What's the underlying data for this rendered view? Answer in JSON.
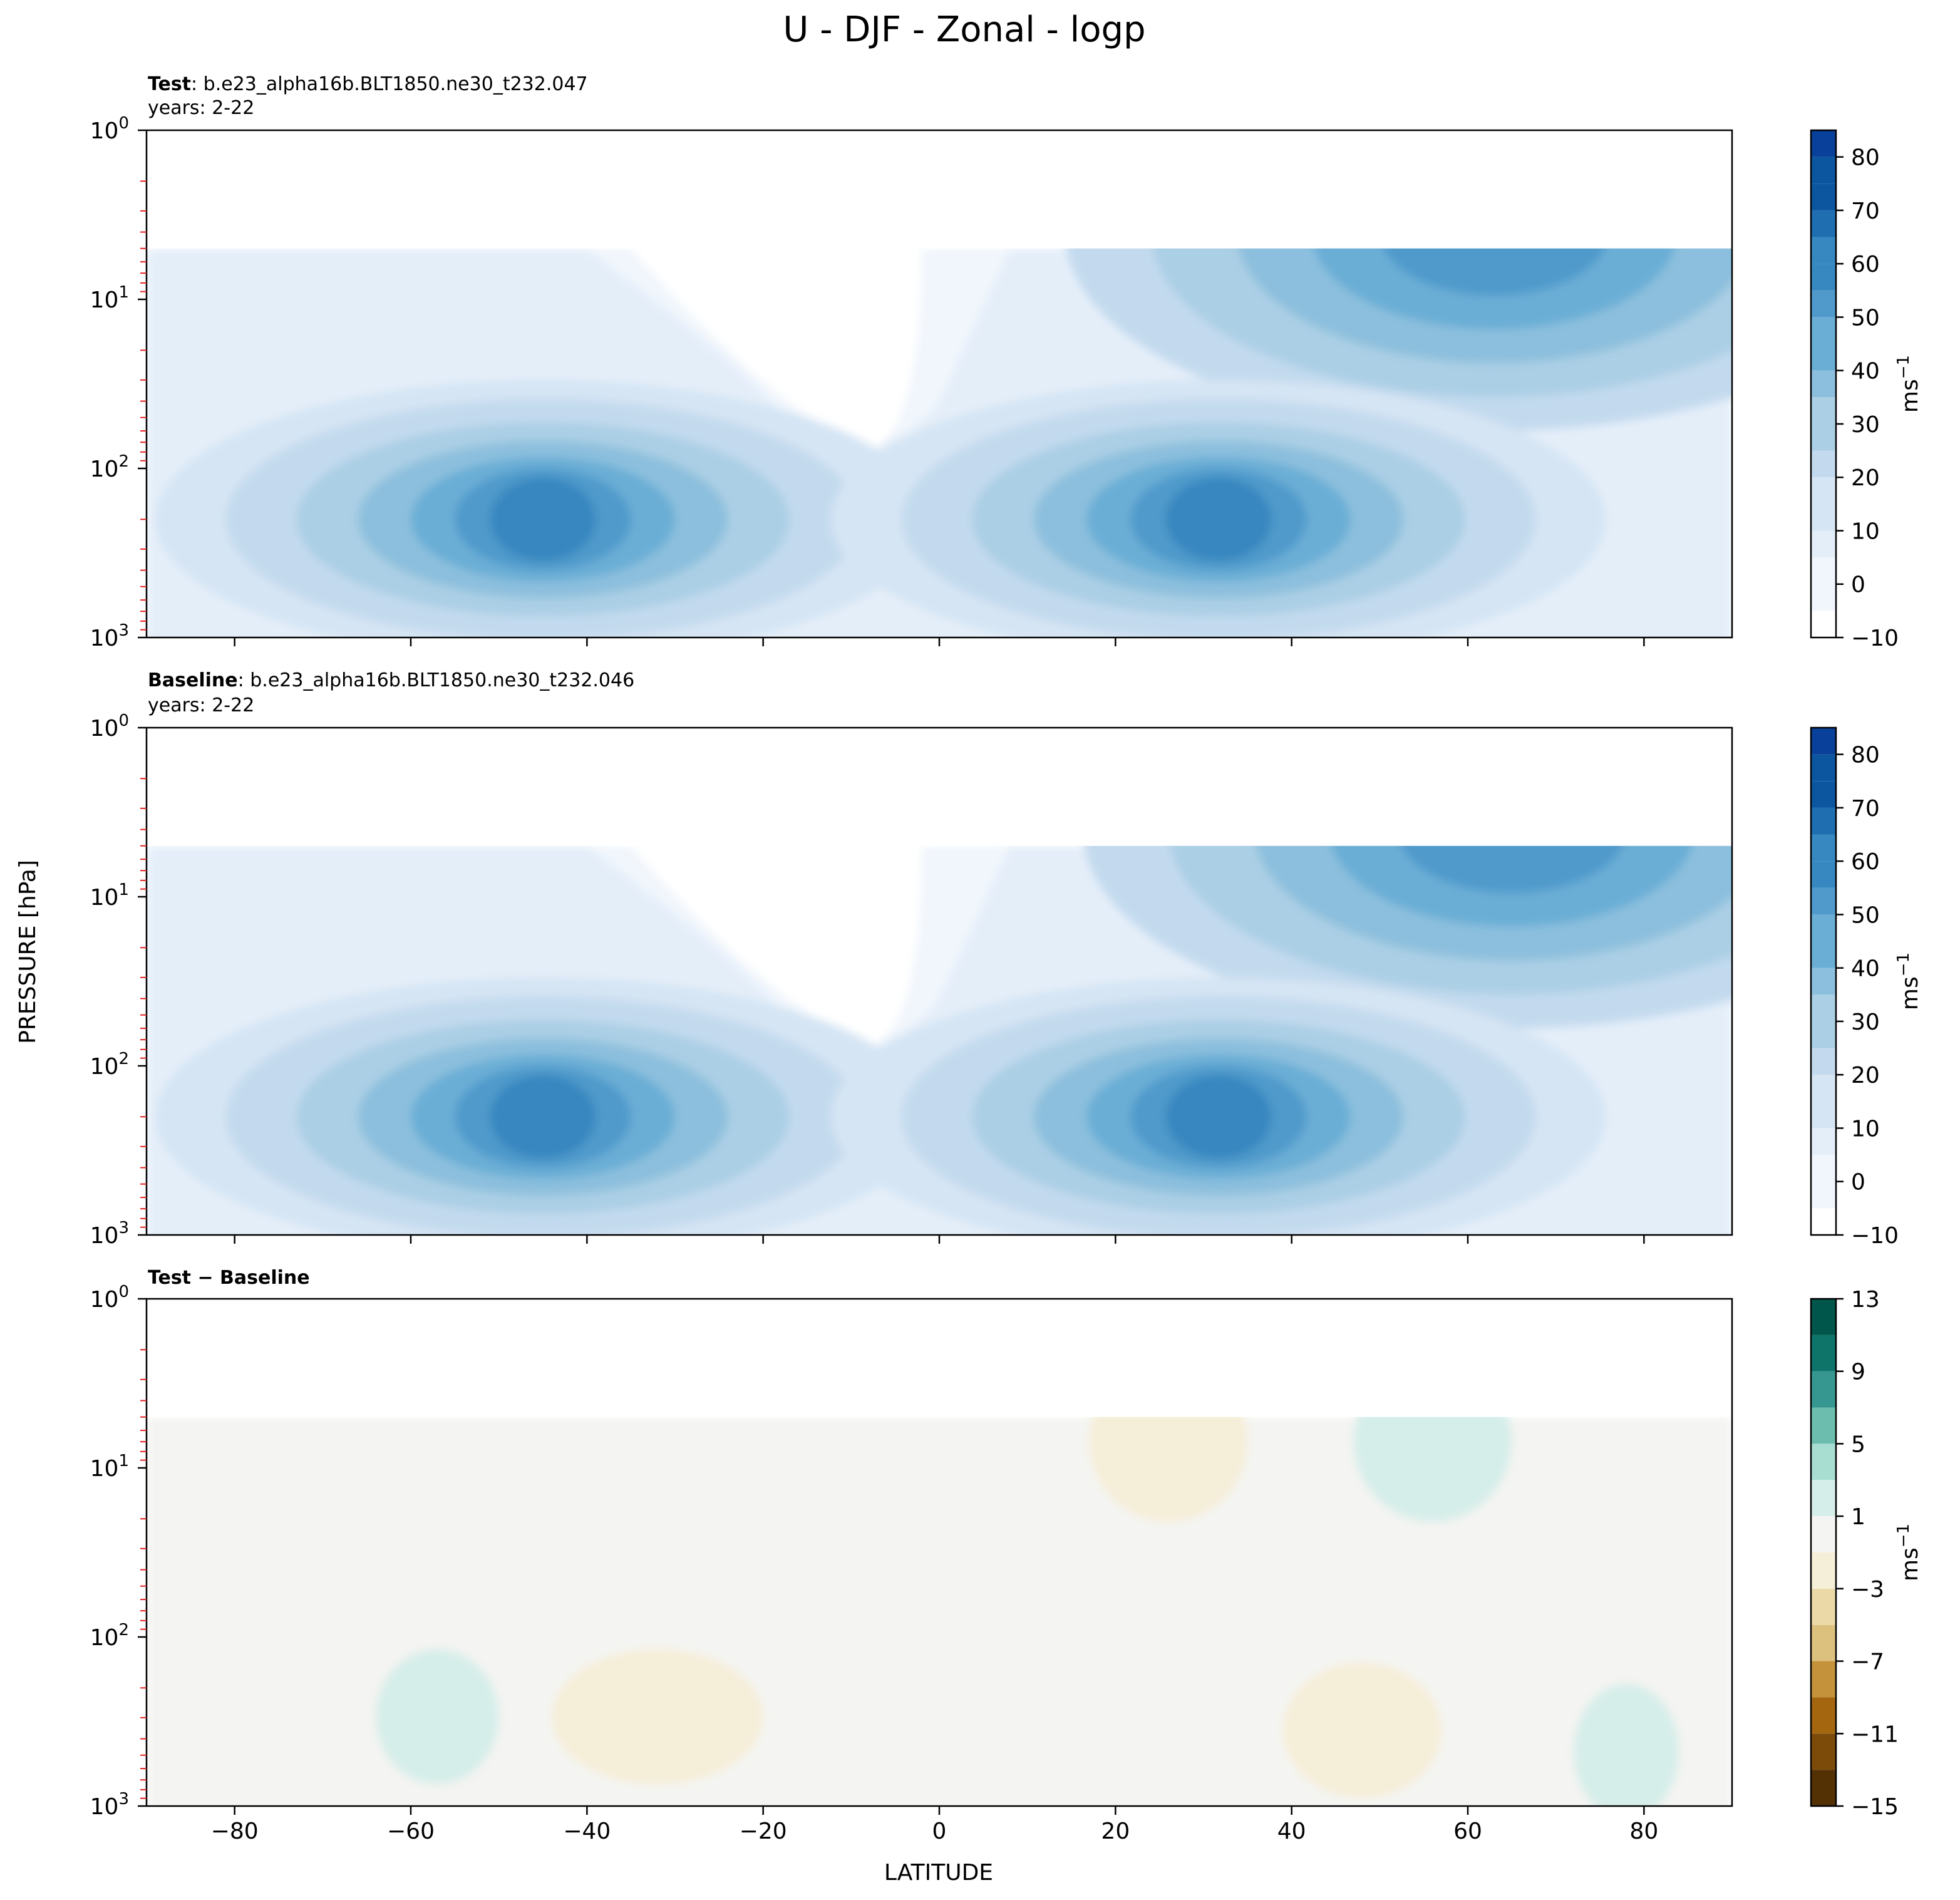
{
  "figure": {
    "title": "U - DJF - Zonal - logp",
    "ylabel": "PRESSURE [hPa]",
    "xlabel": "LATITUDE"
  },
  "chart_data": [
    {
      "type": "heatmap",
      "panel": "test",
      "title_bold": "Test",
      "title_rest": ": b.e23_alpha16b.BLT1850.ne30_t232.047",
      "subtitle": "years: 2-22",
      "xlim": [
        -90,
        90
      ],
      "ylim": [
        1000,
        1
      ],
      "yscale": "log",
      "ylabel": "PRESSURE [hPa]",
      "x_ticks": [
        -80,
        -60,
        -40,
        -20,
        0,
        20,
        40,
        60,
        80
      ],
      "y_tick_labels": [
        "10^0",
        "10^1",
        "10^2",
        "10^3"
      ],
      "colormap": "Blues",
      "colorbar": {
        "levels": [
          -10,
          0,
          10,
          20,
          30,
          40,
          50,
          60,
          70,
          80
        ],
        "label": "ms^-1",
        "vmin": -10,
        "vmax": 85
      },
      "features": [
        {
          "kind": "jet",
          "lat": -45,
          "pressure_hPa": 200,
          "max_value": 40
        },
        {
          "kind": "jet",
          "lat": 31,
          "pressure_hPa": 200,
          "max_value": 45
        },
        {
          "kind": "polar-vortex",
          "lat": 63,
          "pressure_hPa": 6,
          "max_value": 40
        },
        {
          "kind": "easterlies",
          "lat": -10,
          "pressure_hPa": 10,
          "max_value": -10
        }
      ]
    },
    {
      "type": "heatmap",
      "panel": "baseline",
      "title_bold": "Baseline",
      "title_rest": ": b.e23_alpha16b.BLT1850.ne30_t232.046",
      "subtitle": "years: 2-22",
      "xlim": [
        -90,
        90
      ],
      "ylim": [
        1000,
        1
      ],
      "yscale": "log",
      "x_ticks": [
        -80,
        -60,
        -40,
        -20,
        0,
        20,
        40,
        60,
        80
      ],
      "y_tick_labels": [
        "10^0",
        "10^1",
        "10^2",
        "10^3"
      ],
      "colormap": "Blues",
      "colorbar": {
        "levels": [
          -10,
          0,
          10,
          20,
          30,
          40,
          50,
          60,
          70,
          80
        ],
        "label": "ms^-1",
        "vmin": -10,
        "vmax": 85
      },
      "features": [
        {
          "kind": "jet",
          "lat": -45,
          "pressure_hPa": 200,
          "max_value": 40
        },
        {
          "kind": "jet",
          "lat": 31,
          "pressure_hPa": 200,
          "max_value": 45
        },
        {
          "kind": "polar-vortex",
          "lat": 65,
          "pressure_hPa": 6,
          "max_value": 40
        },
        {
          "kind": "easterlies",
          "lat": -10,
          "pressure_hPa": 10,
          "max_value": -10
        }
      ]
    },
    {
      "type": "heatmap",
      "panel": "difference",
      "title_bold": "Test − Baseline",
      "xlim": [
        -90,
        90
      ],
      "ylim": [
        1000,
        1
      ],
      "yscale": "log",
      "xlabel": "LATITUDE",
      "x_ticks": [
        -80,
        -60,
        -40,
        -20,
        0,
        20,
        40,
        60,
        80
      ],
      "y_tick_labels": [
        "10^0",
        "10^1",
        "10^2",
        "10^3"
      ],
      "colormap": "BrBG",
      "colorbar": {
        "levels": [
          -15,
          -13,
          -11,
          -9,
          -7,
          -5,
          -3,
          -1,
          1,
          3,
          5,
          7,
          9,
          11,
          13
        ],
        "tick_labels": [
          -15,
          -11,
          -7,
          -3,
          1,
          5,
          9,
          13
        ],
        "label": "ms^-1"
      },
      "features": [
        {
          "kind": "positive",
          "lat": -57,
          "pressure_hPa": 250,
          "value_range": [
            1,
            3
          ]
        },
        {
          "kind": "negative",
          "lat": -32,
          "pressure_hPa": 250,
          "value_range": [
            -3,
            -1
          ]
        },
        {
          "kind": "negative",
          "lat": 26,
          "pressure_hPa": 8,
          "value_range": [
            -3,
            -1
          ]
        },
        {
          "kind": "positive",
          "lat": 56,
          "pressure_hPa": 7,
          "value_range": [
            1,
            3
          ]
        },
        {
          "kind": "negative",
          "lat": 48,
          "pressure_hPa": 300,
          "value_range": [
            -3,
            -1
          ]
        },
        {
          "kind": "positive",
          "lat": 78,
          "pressure_hPa": 400,
          "value_range": [
            1,
            3
          ]
        }
      ]
    }
  ]
}
